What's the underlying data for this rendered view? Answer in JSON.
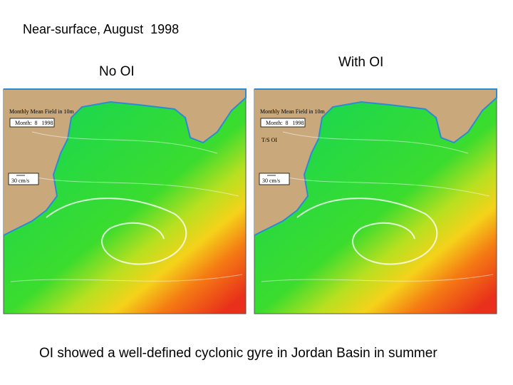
{
  "header": {
    "title": "Near-surface, August  1998"
  },
  "panels": [
    {
      "heading": "No OI",
      "field_label": "Monthly Mean Field in 10m",
      "month_label": "Month:  8   1998",
      "scale_label": "30 cm/s"
    },
    {
      "heading": "With OI",
      "field_label": "Monthly Mean Field in 10m",
      "month_label": "Month:  8   1998",
      "scale_label": "30 cm/s",
      "note": "T/S OI"
    }
  ],
  "caption": "OI showed a well-defined cyclonic gyre in Jordan Basin in summer"
}
